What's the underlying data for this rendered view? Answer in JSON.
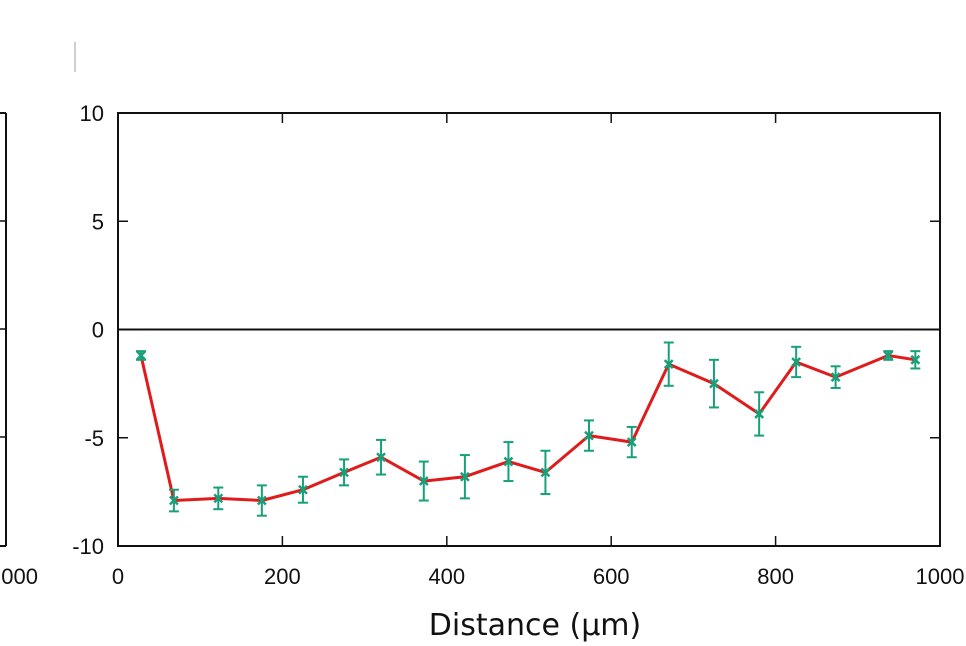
{
  "chart_data": {
    "type": "line",
    "title": "",
    "xlabel": "Distance (µm)",
    "ylabel": "",
    "xlim": [
      0,
      1000
    ],
    "ylim": [
      -10,
      10
    ],
    "xticks": [
      0,
      200,
      400,
      600,
      800,
      1000
    ],
    "xtick_labels": [
      "0",
      "200",
      "400",
      "600",
      "800",
      "1000"
    ],
    "yticks": [
      -10,
      -5,
      0,
      5,
      10
    ],
    "ytick_labels": [
      "-10",
      "-5",
      "0",
      "5",
      "10"
    ],
    "zero_line": true,
    "grid": false,
    "series": [
      {
        "name": "",
        "color": "#e01b1b",
        "marker_color": "#17a07a",
        "x": [
          28,
          68,
          122,
          175,
          225,
          275,
          320,
          372,
          422,
          475,
          520,
          573,
          625,
          670,
          725,
          780,
          825,
          873,
          937,
          970
        ],
        "y": [
          -1.2,
          -7.9,
          -7.8,
          -7.9,
          -7.4,
          -6.6,
          -5.9,
          -7.0,
          -6.8,
          -6.1,
          -6.6,
          -4.9,
          -5.2,
          -1.6,
          -2.5,
          -3.9,
          -1.5,
          -2.2,
          -1.2,
          -1.4
        ],
        "err": [
          0.2,
          0.5,
          0.5,
          0.7,
          0.6,
          0.6,
          0.8,
          0.9,
          1.0,
          0.9,
          1.0,
          0.7,
          0.7,
          1.0,
          1.1,
          1.0,
          0.7,
          0.5,
          0.2,
          0.4
        ]
      }
    ],
    "left_partial_panel": {
      "xtick_label": "000"
    }
  }
}
